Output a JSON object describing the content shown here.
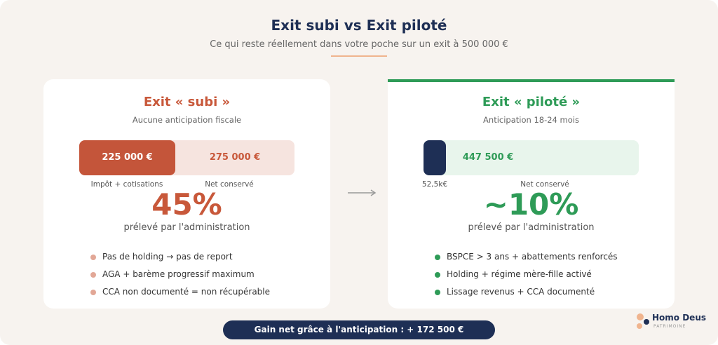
{
  "header": {
    "title": "Exit subi vs Exit piloté",
    "subtitle": "Ce qui reste réellement dans votre poche sur un exit à 500 000 €"
  },
  "cards": [
    {
      "title": "Exit « subi »",
      "subtitle": "Aucune anticipation fiscale",
      "bar": {
        "segments": [
          {
            "value": "225 000 €",
            "label": "Impôt + cotisations"
          },
          {
            "value": "275 000 €",
            "label": "Net conservé"
          }
        ]
      },
      "headline": "45%",
      "caption": "prélevé par l'administration",
      "bullets": [
        "Pas de holding → pas de report",
        "AGA + barème progressif maximum",
        "CCA non documenté = non récupérable"
      ]
    },
    {
      "title": "Exit « piloté »",
      "subtitle": "Anticipation 18-24 mois",
      "bar": {
        "segments": [
          {
            "label": "52,5k€"
          },
          {
            "value": "447 500 €",
            "label": "Net conservé"
          }
        ]
      },
      "headline": "~10%",
      "caption": "prélevé par l'administration",
      "bullets": [
        "BSPCE > 3 ans + abattements renforcés",
        "Holding + régime mère-fille activé",
        "Lissage revenus + CCA documenté"
      ]
    }
  ],
  "footer": {
    "banner": "Gain net grâce à l'anticipation : + 172 500 €",
    "logo": {
      "name": "Homo Deus",
      "tagline": "PATRIMOINE"
    }
  }
}
